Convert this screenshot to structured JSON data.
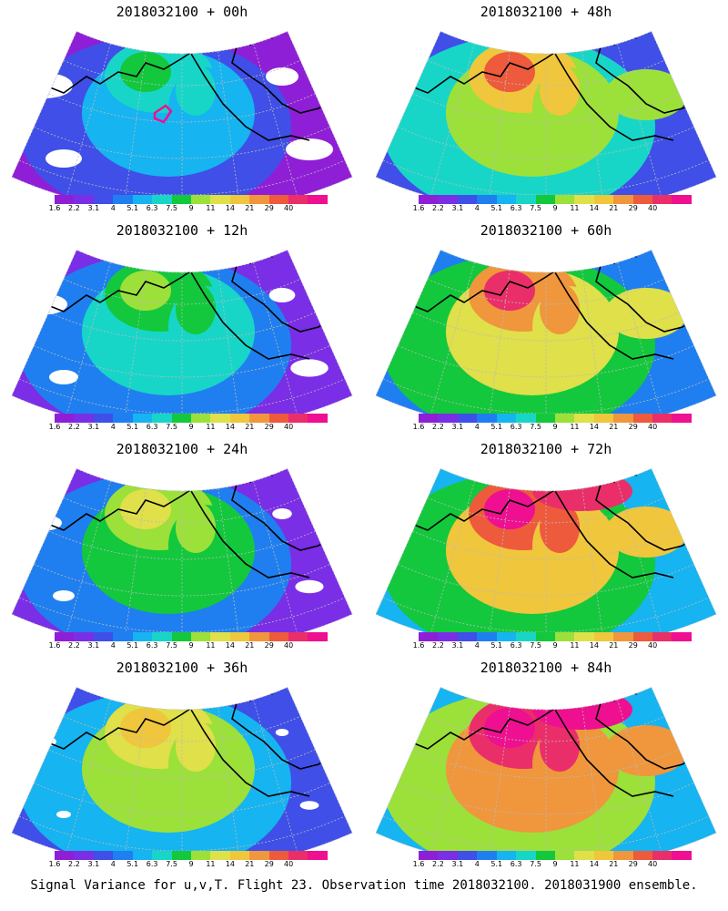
{
  "panels": [
    {
      "title": "2018032100 + 00h",
      "lead": 0
    },
    {
      "title": "2018032100 + 48h",
      "lead": 48
    },
    {
      "title": "2018032100 + 12h",
      "lead": 12
    },
    {
      "title": "2018032100 + 60h",
      "lead": 60
    },
    {
      "title": "2018032100 + 24h",
      "lead": 24
    },
    {
      "title": "2018032100 + 72h",
      "lead": 72
    },
    {
      "title": "2018032100 + 36h",
      "lead": 36
    },
    {
      "title": "2018032100 + 84h",
      "lead": 84
    }
  ],
  "colorbar": {
    "labels": [
      "1.6",
      "2.2",
      "3.1",
      "4",
      "5.1",
      "6.3",
      "7.5",
      "9",
      "11",
      "14",
      "21",
      "29",
      "40"
    ],
    "colors": [
      "#8f1fd6",
      "#7a2ee6",
      "#3f4fe8",
      "#1f7ff0",
      "#16b4f0",
      "#17d6c8",
      "#13c83c",
      "#9ce03a",
      "#dfe04a",
      "#f0c63c",
      "#f0963c",
      "#ee5a3c",
      "#ea2e6a",
      "#ee1090"
    ]
  },
  "footer": "Signal Variance for u,v,T. Flight 23. Observation time 2018032100. 2018031900 ensemble."
}
